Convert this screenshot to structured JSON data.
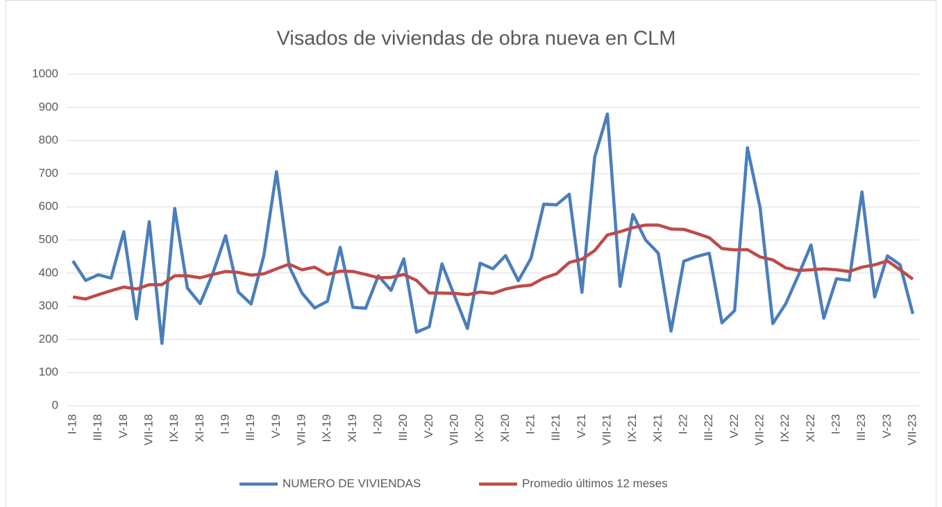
{
  "chart_data": {
    "type": "line",
    "title": "Visados de viviendas de obra nueva en CLM",
    "categories": [
      "I-18",
      null,
      "III-18",
      null,
      "V-18",
      null,
      "VII-18",
      null,
      "IX-18",
      null,
      "XI-18",
      null,
      "I-19",
      null,
      "III-19",
      null,
      "V-19",
      null,
      "VII-19",
      null,
      "IX-19",
      null,
      "XI-19",
      null,
      "I-20",
      null,
      "III-20",
      null,
      "V-20",
      null,
      "VII-20",
      null,
      "IX-20",
      null,
      "XI-20",
      null,
      "I-21",
      null,
      "III-21",
      null,
      "V-21",
      null,
      "VII-21",
      null,
      "IX-21",
      null,
      "XI-21",
      null,
      "I-22",
      null,
      "III-22",
      null,
      "V-22",
      null,
      "VII-22",
      null,
      "IX-22",
      null,
      "XI-22",
      null,
      "I-23",
      null,
      "III-23",
      null,
      "V-23",
      null,
      "VII-23"
    ],
    "series": [
      {
        "name": "NUMERO DE VIVIENDAS",
        "color": "#4a7ebb",
        "values": [
          437,
          378,
          395,
          385,
          525,
          262,
          555,
          188,
          595,
          355,
          308,
          400,
          513,
          343,
          307,
          452,
          706,
          420,
          340,
          295,
          315,
          478,
          297,
          294,
          392,
          348,
          443,
          222,
          238,
          428,
          330,
          233,
          430,
          413,
          453,
          377,
          445,
          608,
          606,
          638,
          342,
          750,
          880,
          360,
          577,
          500,
          460,
          225,
          436,
          450,
          460,
          250,
          287,
          778,
          597,
          248,
          307,
          393,
          485,
          264,
          383,
          378,
          645,
          328,
          452,
          425,
          277
        ]
      },
      {
        "name": "Promedio últimos 12 meses",
        "color": "#be4b48",
        "values": [
          328,
          322,
          335,
          347,
          358,
          352,
          365,
          365,
          392,
          392,
          386,
          396,
          405,
          402,
          394,
          398,
          413,
          427,
          410,
          418,
          396,
          406,
          405,
          396,
          386,
          387,
          396,
          378,
          340,
          340,
          339,
          335,
          343,
          339,
          352,
          360,
          364,
          385,
          398,
          432,
          442,
          468,
          515,
          525,
          537,
          545,
          545,
          533,
          532,
          520,
          507,
          474,
          470,
          471,
          449,
          440,
          416,
          408,
          410,
          413,
          410,
          405,
          418,
          425,
          437,
          410,
          382
        ]
      }
    ],
    "ylim": [
      0,
      1000
    ],
    "yticks": [
      0,
      100,
      200,
      300,
      400,
      500,
      600,
      700,
      800,
      900,
      1000
    ],
    "grid": true,
    "legend": "bottom"
  }
}
